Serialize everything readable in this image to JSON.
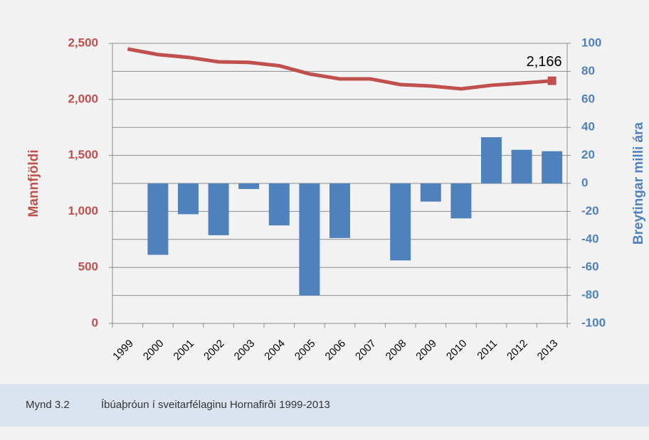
{
  "chart_data": {
    "type": "bar_line",
    "categories": [
      "1999",
      "2000",
      "2001",
      "2002",
      "2003",
      "2004",
      "2005",
      "2006",
      "2007",
      "2008",
      "2009",
      "2010",
      "2011",
      "2012",
      "2013"
    ],
    "series": [
      {
        "name": "Mannfjöldi",
        "type": "line",
        "color": "#c0504d",
        "axis": "y",
        "values": [
          2450,
          2400,
          2375,
          2335,
          2330,
          2300,
          2227,
          2183,
          2183,
          2132,
          2119,
          2094,
          2126,
          2145,
          2166
        ],
        "value_labels": [
          null,
          null,
          null,
          null,
          null,
          null,
          null,
          null,
          null,
          null,
          null,
          null,
          null,
          null,
          "2,166"
        ]
      },
      {
        "name": "Breytingar milli ára",
        "type": "bar",
        "color": "#4f81bd",
        "axis": "y2",
        "values": [
          null,
          -51,
          -22,
          -37,
          -4,
          -30,
          -80,
          -39,
          0,
          -55,
          -13,
          -25,
          33,
          24,
          23
        ]
      }
    ],
    "ylabel": "Mannfjöldi",
    "y2label": "Breytingar milli ára",
    "ylim": [
      0,
      2500
    ],
    "yticks": [
      0,
      500,
      {
        "value": 1000,
        "label": "1,000"
      },
      {
        "value": 1500,
        "label": "1,500"
      },
      {
        "value": 2000,
        "label": "2,000"
      },
      {
        "value": 2500,
        "label": "2,500"
      }
    ],
    "y2lim": [
      -100,
      100
    ],
    "y2ticks": [
      -100,
      -80,
      -60,
      -40,
      -20,
      0,
      20,
      40,
      60,
      80,
      100
    ],
    "grid": true
  },
  "caption": {
    "number": "Mynd 3.2",
    "text": "Íbúaþróun í sveitarfélaginu Hornafirði 1999-2013"
  }
}
